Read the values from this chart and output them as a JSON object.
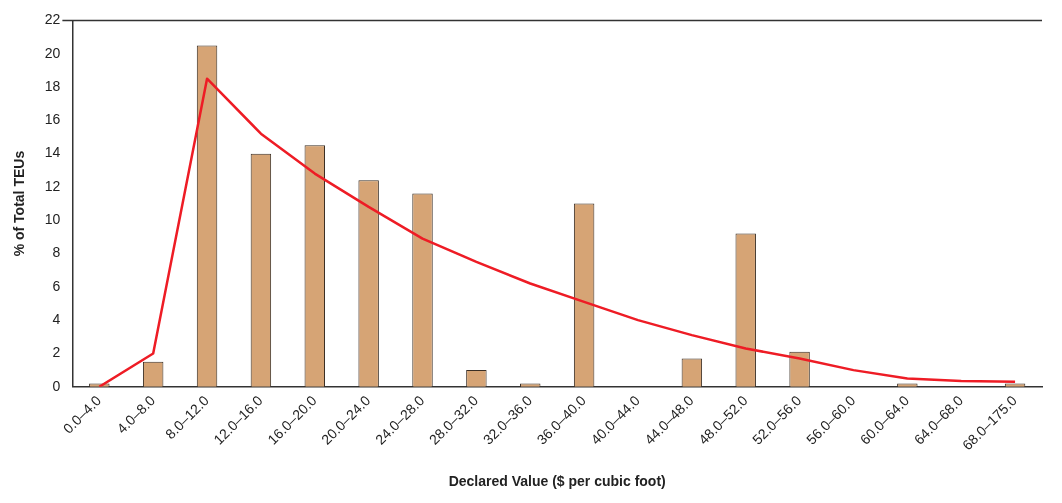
{
  "chart_data": {
    "type": "bar",
    "xlabel": "Declared Value ($ per cubic foot)",
    "ylabel": "% of Total TEUs",
    "categories": [
      "0.0–4.0",
      "4.0–8.0",
      "8.0–12.0",
      "12.0–16.0",
      "16.0–20.0",
      "20.0–24.0",
      "24.0–28.0",
      "28.0–32.0",
      "32.0–36.0",
      "36.0–40.0",
      "40.0–44.0",
      "44.0–48.0",
      "48.0–52.0",
      "52.0–56.0",
      "56.0–60.0",
      "60.0–64.0",
      "64.0–68.0",
      "68.0–175.0"
    ],
    "series": [
      {
        "color": "#d6a475",
        "values": [
          0.2,
          1.5,
          20.5,
          14,
          14.5,
          12.4,
          11.6,
          1.0,
          0.2,
          11.0,
          0,
          1.7,
          9.2,
          2.1,
          0,
          0.2,
          0,
          0.2
        ]
      },
      {
        "type": "line",
        "color": "#ee1c25",
        "values": [
          0,
          2.0,
          18.5,
          15.2,
          12.8,
          10.8,
          8.9,
          7.5,
          6.2,
          5.1,
          4.0,
          3.1,
          2.3,
          1.7,
          1.0,
          0.5,
          0.35,
          0.3
        ]
      }
    ],
    "ylim": [
      0,
      22
    ],
    "yticks": [
      0,
      2,
      4,
      6,
      8,
      10,
      12,
      14,
      16,
      18,
      20,
      22
    ],
    "grid": false,
    "legend": false,
    "marker": "none"
  }
}
